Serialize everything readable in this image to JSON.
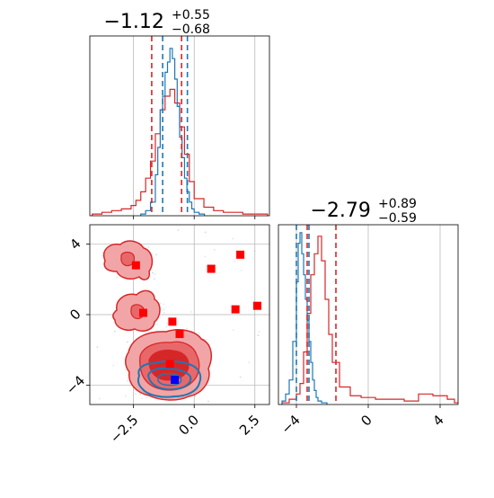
{
  "colors": {
    "red": "#d62728",
    "blue": "#1f77b4",
    "red_fill_light": "#f2a5a6",
    "red_fill_dark": "#d62728",
    "grid": "#b0b0b0",
    "marker_red": "#ff0000",
    "marker_blue": "#0000ff"
  },
  "chart_data": [
    {
      "type": "histogram",
      "panel": "top-left",
      "title": {
        "main": "−1.12",
        "sup": "+0.55",
        "sub": "−0.68"
      },
      "xlim": [
        -4.3,
        3.1
      ],
      "series": [
        {
          "name": "",
          "color": "red",
          "x": [
            -4.2,
            -3.8,
            -3.4,
            -3.0,
            -2.6,
            -2.4,
            -2.2,
            -2.0,
            -1.8,
            -1.6,
            -1.4,
            -1.2,
            -1.0,
            -0.8,
            -0.6,
            -0.4,
            -0.2,
            0.0,
            0.4,
            0.8,
            1.2,
            1.6,
            2.0,
            2.4,
            2.8
          ],
          "y": [
            1,
            2,
            3,
            4,
            6,
            9,
            14,
            22,
            32,
            48,
            62,
            70,
            74,
            66,
            52,
            36,
            20,
            10,
            5,
            3,
            2,
            2,
            1,
            1,
            1
          ]
        },
        {
          "name": "",
          "color": "blue",
          "x": [
            -2.2,
            -2.0,
            -1.8,
            -1.6,
            -1.5,
            -1.4,
            -1.3,
            -1.2,
            -1.1,
            -1.0,
            -0.9,
            -0.8,
            -0.7,
            -0.6,
            -0.5,
            -0.4,
            -0.3,
            -0.2,
            -0.1,
            0.0,
            0.2
          ],
          "y": [
            1,
            3,
            8,
            24,
            40,
            62,
            70,
            84,
            90,
            98,
            92,
            80,
            64,
            46,
            34,
            22,
            14,
            8,
            4,
            2,
            1
          ]
        }
      ],
      "quantile_lines": [
        {
          "color": "red",
          "x": [
            -1.75,
            -0.52
          ]
        },
        {
          "color": "blue",
          "x": [
            -1.3,
            -0.28
          ]
        }
      ],
      "x_ticks": [
        -2.5,
        0.0,
        2.5
      ]
    },
    {
      "type": "contour",
      "panel": "bottom-left",
      "xlim": [
        -4.3,
        3.1
      ],
      "ylim": [
        -5.1,
        5.1
      ],
      "x_ticks": [
        -2.5,
        0.0,
        2.5
      ],
      "y_ticks": [
        4,
        0,
        -4
      ],
      "x_tick_labels": [
        "−2.5",
        "0.0",
        "2.5"
      ],
      "y_tick_labels": [
        "4",
        "0",
        "−4"
      ],
      "red_markers": [
        {
          "x": -2.4,
          "y": 2.8
        },
        {
          "x": -2.1,
          "y": 0.1
        },
        {
          "x": -0.9,
          "y": -0.4
        },
        {
          "x": -0.6,
          "y": -1.1
        },
        {
          "x": 0.7,
          "y": 2.6
        },
        {
          "x": 1.9,
          "y": 3.4
        },
        {
          "x": 1.7,
          "y": 0.3
        },
        {
          "x": 2.6,
          "y": 0.5
        },
        {
          "x": -1.0,
          "y": -2.8
        }
      ],
      "blue_markers": [
        {
          "x": -0.8,
          "y": -3.7
        }
      ]
    },
    {
      "type": "histogram",
      "panel": "bottom-right",
      "title": {
        "main": "−2.79",
        "sup": "+0.89",
        "sub": "−0.59"
      },
      "xlim": [
        -5.0,
        5.0
      ],
      "x_ticks": [
        -4,
        0,
        4
      ],
      "x_tick_labels": [
        "−4",
        "0",
        "4"
      ],
      "series": [
        {
          "name": "",
          "color": "red",
          "x": [
            -4.8,
            -4.4,
            -4.0,
            -3.8,
            -3.6,
            -3.4,
            -3.2,
            -3.0,
            -2.8,
            -2.6,
            -2.4,
            -2.2,
            -2.0,
            -1.6,
            -1.0,
            -0.4,
            0.4,
            1.2,
            2.0,
            2.8,
            3.6,
            4.4,
            4.8
          ],
          "y": [
            1,
            3,
            6,
            12,
            30,
            52,
            74,
            86,
            96,
            82,
            60,
            40,
            24,
            10,
            5,
            4,
            3,
            3,
            2,
            6,
            5,
            3,
            1
          ]
        },
        {
          "name": "",
          "color": "blue",
          "x": [
            -4.8,
            -4.6,
            -4.4,
            -4.2,
            -4.0,
            -3.9,
            -3.8,
            -3.7,
            -3.6,
            -3.5,
            -3.4,
            -3.3,
            -3.2,
            -3.1,
            -3.0,
            -2.9,
            -2.8,
            -2.6
          ],
          "y": [
            2,
            6,
            14,
            36,
            70,
            92,
            98,
            86,
            74,
            60,
            48,
            36,
            24,
            14,
            8,
            4,
            2,
            1
          ]
        }
      ],
      "quantile_lines": [
        {
          "color": "red",
          "x": [
            -3.4,
            -1.8
          ]
        },
        {
          "color": "blue",
          "x": [
            -4.0,
            -3.3
          ]
        }
      ]
    }
  ]
}
